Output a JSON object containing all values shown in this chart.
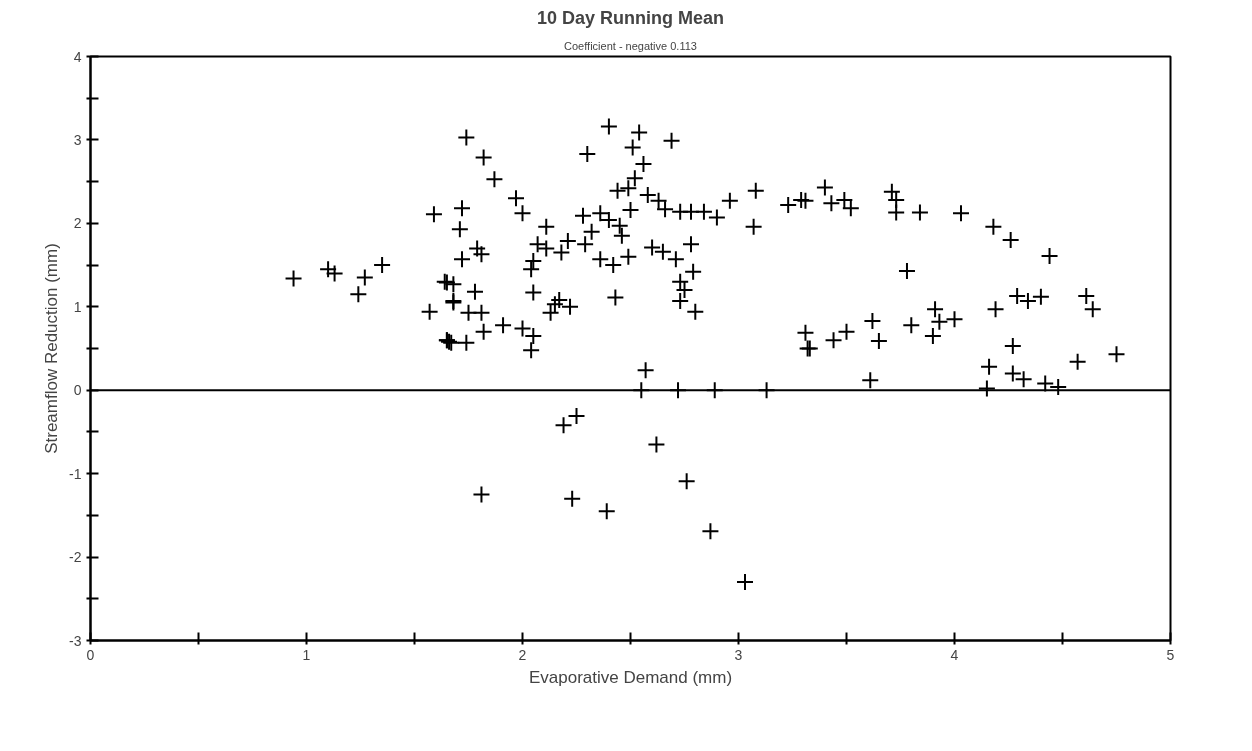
{
  "chart_data": {
    "type": "scatter",
    "title": "10 Day Running Mean",
    "subtitle": "Coefficient - negative 0.113",
    "xlabel": "Evaporative Demand (mm)",
    "ylabel": "Streamflow Reduction (mm)",
    "xlim": [
      0,
      5
    ],
    "ylim": [
      -3,
      4
    ],
    "xticks": [
      0,
      {
        "value": 0.5,
        "label": null
      },
      1,
      {
        "value": 1.5,
        "label": null
      },
      2,
      {
        "value": 2.5,
        "label": null
      },
      3,
      {
        "value": 3.5,
        "label": null
      },
      4,
      {
        "value": 4.5,
        "label": null
      },
      5
    ],
    "yticks": [
      -3,
      {
        "value": -2.5,
        "label": null
      },
      -2,
      {
        "value": -1.5,
        "label": null
      },
      -1,
      {
        "value": -0.5,
        "label": null
      },
      0,
      {
        "value": 0.5,
        "label": null
      },
      1,
      {
        "value": 1.5,
        "label": null
      },
      2,
      {
        "value": 2.5,
        "label": null
      },
      3,
      {
        "value": 3.5,
        "label": null
      },
      4
    ],
    "grid": false,
    "marker": "cross",
    "ref_lines": [
      {
        "axis": "y",
        "value": 0,
        "color": "#000000"
      }
    ],
    "series": [
      {
        "color": "#000000",
        "x": [
          0.94,
          1.1,
          1.13,
          1.27,
          1.24,
          1.35,
          1.59,
          1.57,
          1.65,
          1.68,
          1.65,
          1.66,
          1.74,
          1.82,
          1.87,
          1.97,
          2.0,
          1.72,
          1.71,
          2.11,
          1.79,
          1.81,
          1.72,
          2.07,
          2.11,
          2.18,
          2.21,
          2.05,
          2.04,
          1.64,
          1.68,
          1.68,
          1.78,
          2.05,
          1.75,
          1.81,
          1.82,
          1.91,
          2.0,
          2.05,
          2.04,
          1.65,
          1.67,
          1.74,
          2.15,
          2.17,
          2.22,
          2.13,
          2.4,
          2.54,
          2.51,
          2.69,
          2.3,
          2.56,
          2.52,
          2.49,
          2.44,
          2.58,
          2.63,
          2.66,
          2.73,
          2.78,
          2.84,
          2.9,
          2.96,
          3.08,
          3.07,
          3.23,
          3.29,
          2.28,
          2.36,
          2.4,
          2.5,
          2.45,
          2.46,
          2.32,
          2.29,
          2.36,
          2.42,
          2.49,
          2.6,
          2.65,
          2.78,
          2.71,
          2.79,
          2.73,
          2.75,
          2.73,
          2.8,
          2.43,
          3.31,
          3.32,
          2.57,
          2.25,
          2.55,
          2.72,
          2.89,
          3.13,
          3.4,
          3.31,
          3.43,
          3.49,
          3.52,
          3.71,
          3.73,
          3.73,
          3.84,
          4.03,
          4.18,
          4.26,
          4.44,
          3.78,
          4.29,
          4.34,
          4.4,
          4.61,
          4.64,
          4.19,
          3.91,
          3.93,
          4.0,
          3.9,
          3.8,
          3.62,
          3.65,
          3.33,
          3.44,
          3.5,
          4.27,
          4.57,
          4.75,
          3.61,
          4.16,
          4.27,
          4.32,
          4.42,
          4.48,
          4.15,
          1.81,
          2.19,
          2.23,
          2.39,
          2.62,
          2.76,
          2.87,
          3.03
        ],
        "values": [
          1.34,
          1.45,
          1.4,
          1.35,
          1.15,
          1.5,
          2.11,
          0.94,
          1.29,
          1.05,
          0.6,
          0.58,
          3.03,
          2.79,
          2.53,
          2.3,
          2.12,
          2.18,
          1.93,
          1.96,
          1.7,
          1.63,
          1.57,
          1.75,
          1.7,
          1.65,
          1.79,
          1.55,
          1.45,
          1.3,
          1.27,
          1.07,
          1.18,
          1.17,
          0.93,
          0.93,
          0.7,
          0.78,
          0.74,
          0.65,
          0.48,
          0.6,
          0.57,
          0.57,
          1.03,
          1.08,
          1.0,
          0.93,
          3.16,
          3.09,
          2.91,
          2.99,
          2.83,
          2.71,
          2.54,
          2.42,
          2.39,
          2.34,
          2.27,
          2.17,
          2.14,
          2.14,
          2.14,
          2.07,
          2.27,
          2.39,
          1.96,
          2.22,
          2.28,
          2.09,
          2.12,
          2.04,
          2.16,
          1.97,
          1.85,
          1.9,
          1.75,
          1.57,
          1.5,
          1.6,
          1.71,
          1.66,
          1.75,
          1.57,
          1.42,
          1.3,
          1.2,
          1.07,
          0.94,
          1.11,
          0.69,
          0.5,
          0.24,
          -0.31,
          0,
          0,
          0,
          0,
          2.43,
          2.27,
          2.24,
          2.28,
          2.18,
          2.38,
          2.28,
          2.13,
          2.13,
          2.12,
          1.96,
          1.8,
          1.61,
          1.43,
          1.13,
          1.07,
          1.12,
          1.13,
          0.97,
          0.97,
          0.97,
          0.82,
          0.85,
          0.65,
          0.78,
          0.83,
          0.59,
          0.5,
          0.6,
          0.7,
          0.53,
          0.34,
          0.43,
          0.12,
          0.28,
          0.2,
          0.13,
          0.08,
          0.04,
          0.02,
          -1.25,
          -0.42,
          -1.3,
          -1.45,
          -0.65,
          -1.09,
          -1.69,
          -2.3
        ]
      }
    ]
  }
}
